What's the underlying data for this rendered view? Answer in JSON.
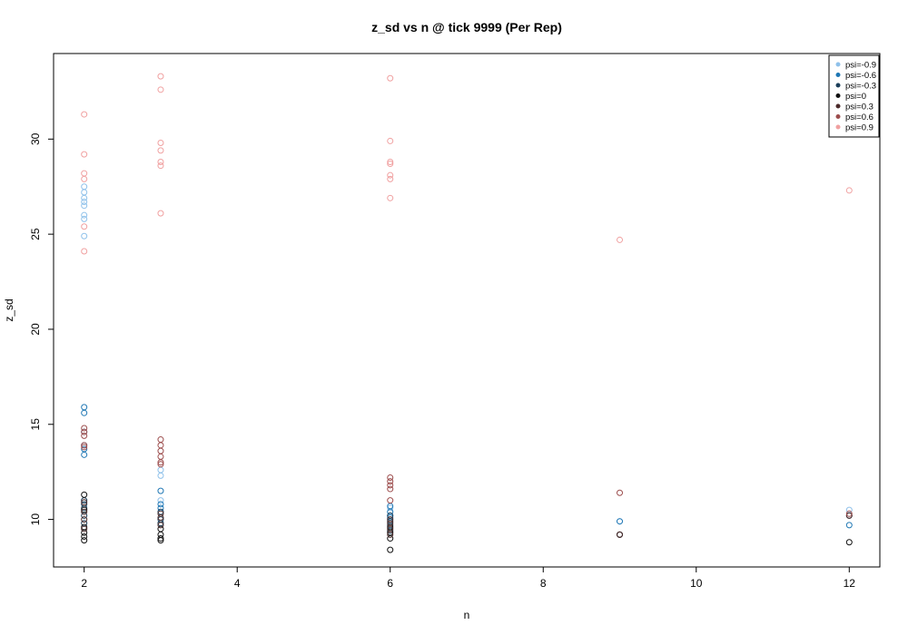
{
  "chart_data": {
    "type": "scatter",
    "title": "z_sd vs n @ tick 9999 (Per Rep)",
    "xlabel": "n",
    "ylabel": "z_sd",
    "xlim": [
      1.6,
      12.4
    ],
    "ylim": [
      7.5,
      34.5
    ],
    "xticks": [
      "2",
      "4",
      "6",
      "8",
      "10",
      "12"
    ],
    "yticks": [
      "10",
      "15",
      "20",
      "25",
      "30"
    ],
    "grid": false,
    "legend_position": "top-right",
    "series": [
      {
        "name": "psi=-0.9",
        "color": "#8fc1ea",
        "points": [
          [
            2,
            27.5
          ],
          [
            2,
            27.2
          ],
          [
            2,
            26.9
          ],
          [
            2,
            26.7
          ],
          [
            2,
            26.5
          ],
          [
            2,
            26.0
          ],
          [
            2,
            25.8
          ],
          [
            2,
            24.9
          ],
          [
            3,
            12.6
          ],
          [
            3,
            12.3
          ],
          [
            3,
            11.0
          ],
          [
            6,
            10.6
          ],
          [
            6,
            10.2
          ],
          [
            9,
            9.9
          ],
          [
            12,
            10.5
          ]
        ]
      },
      {
        "name": "psi=-0.6",
        "color": "#1f77b4",
        "points": [
          [
            2,
            15.9
          ],
          [
            2,
            15.6
          ],
          [
            2,
            14.6
          ],
          [
            2,
            13.9
          ],
          [
            2,
            13.7
          ],
          [
            2,
            13.4
          ],
          [
            3,
            11.5
          ],
          [
            3,
            10.8
          ],
          [
            3,
            10.6
          ],
          [
            6,
            10.7
          ],
          [
            6,
            10.4
          ],
          [
            6,
            10.1
          ],
          [
            9,
            9.9
          ],
          [
            12,
            9.7
          ]
        ]
      },
      {
        "name": "psi=-0.3",
        "color": "#1c3f5a",
        "points": [
          [
            2,
            11.0
          ],
          [
            2,
            10.8
          ],
          [
            2,
            10.6
          ],
          [
            2,
            10.2
          ],
          [
            2,
            9.8
          ],
          [
            3,
            10.4
          ],
          [
            3,
            10.0
          ],
          [
            3,
            9.8
          ],
          [
            6,
            10.2
          ],
          [
            6,
            9.9
          ],
          [
            6,
            9.7
          ],
          [
            6,
            9.4
          ],
          [
            9,
            9.2
          ],
          [
            12,
            10.2
          ]
        ]
      },
      {
        "name": "psi=0",
        "color": "#111111",
        "points": [
          [
            2,
            11.3
          ],
          [
            2,
            10.5
          ],
          [
            2,
            9.6
          ],
          [
            2,
            9.3
          ],
          [
            2,
            9.1
          ],
          [
            2,
            8.9
          ],
          [
            3,
            9.5
          ],
          [
            3,
            9.2
          ],
          [
            3,
            9.0
          ],
          [
            3,
            8.9
          ],
          [
            6,
            9.6
          ],
          [
            6,
            9.3
          ],
          [
            6,
            9.0
          ],
          [
            6,
            8.4
          ],
          [
            9,
            9.2
          ],
          [
            12,
            8.8
          ]
        ]
      },
      {
        "name": "psi=0.3",
        "color": "#4a2a2a",
        "points": [
          [
            2,
            10.9
          ],
          [
            2,
            10.4
          ],
          [
            2,
            10.0
          ],
          [
            2,
            9.5
          ],
          [
            3,
            10.3
          ],
          [
            3,
            10.1
          ],
          [
            3,
            9.7
          ],
          [
            6,
            10.0
          ],
          [
            6,
            9.8
          ],
          [
            6,
            9.5
          ],
          [
            6,
            9.2
          ],
          [
            9,
            9.2
          ],
          [
            12,
            10.2
          ]
        ]
      },
      {
        "name": "psi=0.6",
        "color": "#9c4d4d",
        "points": [
          [
            2,
            14.8
          ],
          [
            2,
            14.6
          ],
          [
            2,
            14.4
          ],
          [
            2,
            13.9
          ],
          [
            2,
            13.8
          ],
          [
            3,
            14.2
          ],
          [
            3,
            13.9
          ],
          [
            3,
            13.6
          ],
          [
            3,
            13.3
          ],
          [
            3,
            13.0
          ],
          [
            3,
            12.9
          ],
          [
            6,
            12.2
          ],
          [
            6,
            12.0
          ],
          [
            6,
            11.8
          ],
          [
            6,
            11.6
          ],
          [
            6,
            11.0
          ],
          [
            9,
            11.4
          ],
          [
            12,
            10.3
          ]
        ]
      },
      {
        "name": "psi=0.9",
        "color": "#f0a0a0",
        "points": [
          [
            2,
            31.3
          ],
          [
            2,
            29.2
          ],
          [
            2,
            28.2
          ],
          [
            2,
            27.9
          ],
          [
            2,
            25.4
          ],
          [
            2,
            24.1
          ],
          [
            3,
            33.3
          ],
          [
            3,
            32.6
          ],
          [
            3,
            29.8
          ],
          [
            3,
            29.4
          ],
          [
            3,
            28.8
          ],
          [
            3,
            28.6
          ],
          [
            3,
            26.1
          ],
          [
            6,
            33.2
          ],
          [
            6,
            29.9
          ],
          [
            6,
            28.8
          ],
          [
            6,
            28.7
          ],
          [
            6,
            28.1
          ],
          [
            6,
            27.9
          ],
          [
            6,
            26.9
          ],
          [
            9,
            24.7
          ],
          [
            12,
            27.3
          ]
        ]
      }
    ]
  }
}
